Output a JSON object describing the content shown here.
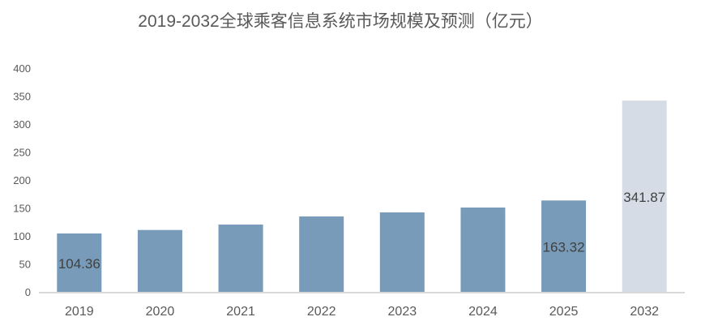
{
  "chart_data": {
    "type": "bar",
    "title": "2019-2032全球乘客信息系统市场规模及预测（亿元）",
    "xlabel": "",
    "ylabel": "",
    "categories": [
      "2019",
      "2020",
      "2021",
      "2022",
      "2023",
      "2024",
      "2025",
      "2032"
    ],
    "values": [
      104.36,
      110.6,
      120.3,
      134.8,
      142,
      150.7,
      163.32,
      341.87
    ],
    "data_labels": {
      "0": "104.36",
      "6": "163.32",
      "7": "341.87"
    },
    "ylim": [
      0,
      400
    ],
    "yticks": [
      0,
      50,
      100,
      150,
      200,
      250,
      300,
      350,
      400
    ],
    "grid": false,
    "legend": "none",
    "colors": {
      "actual": "#789bb9",
      "forecast": "#d6dce6",
      "axis": "#d9d9d9",
      "text": "#595959",
      "label": "#404040"
    },
    "forecast_categories": [
      "2032"
    ]
  }
}
